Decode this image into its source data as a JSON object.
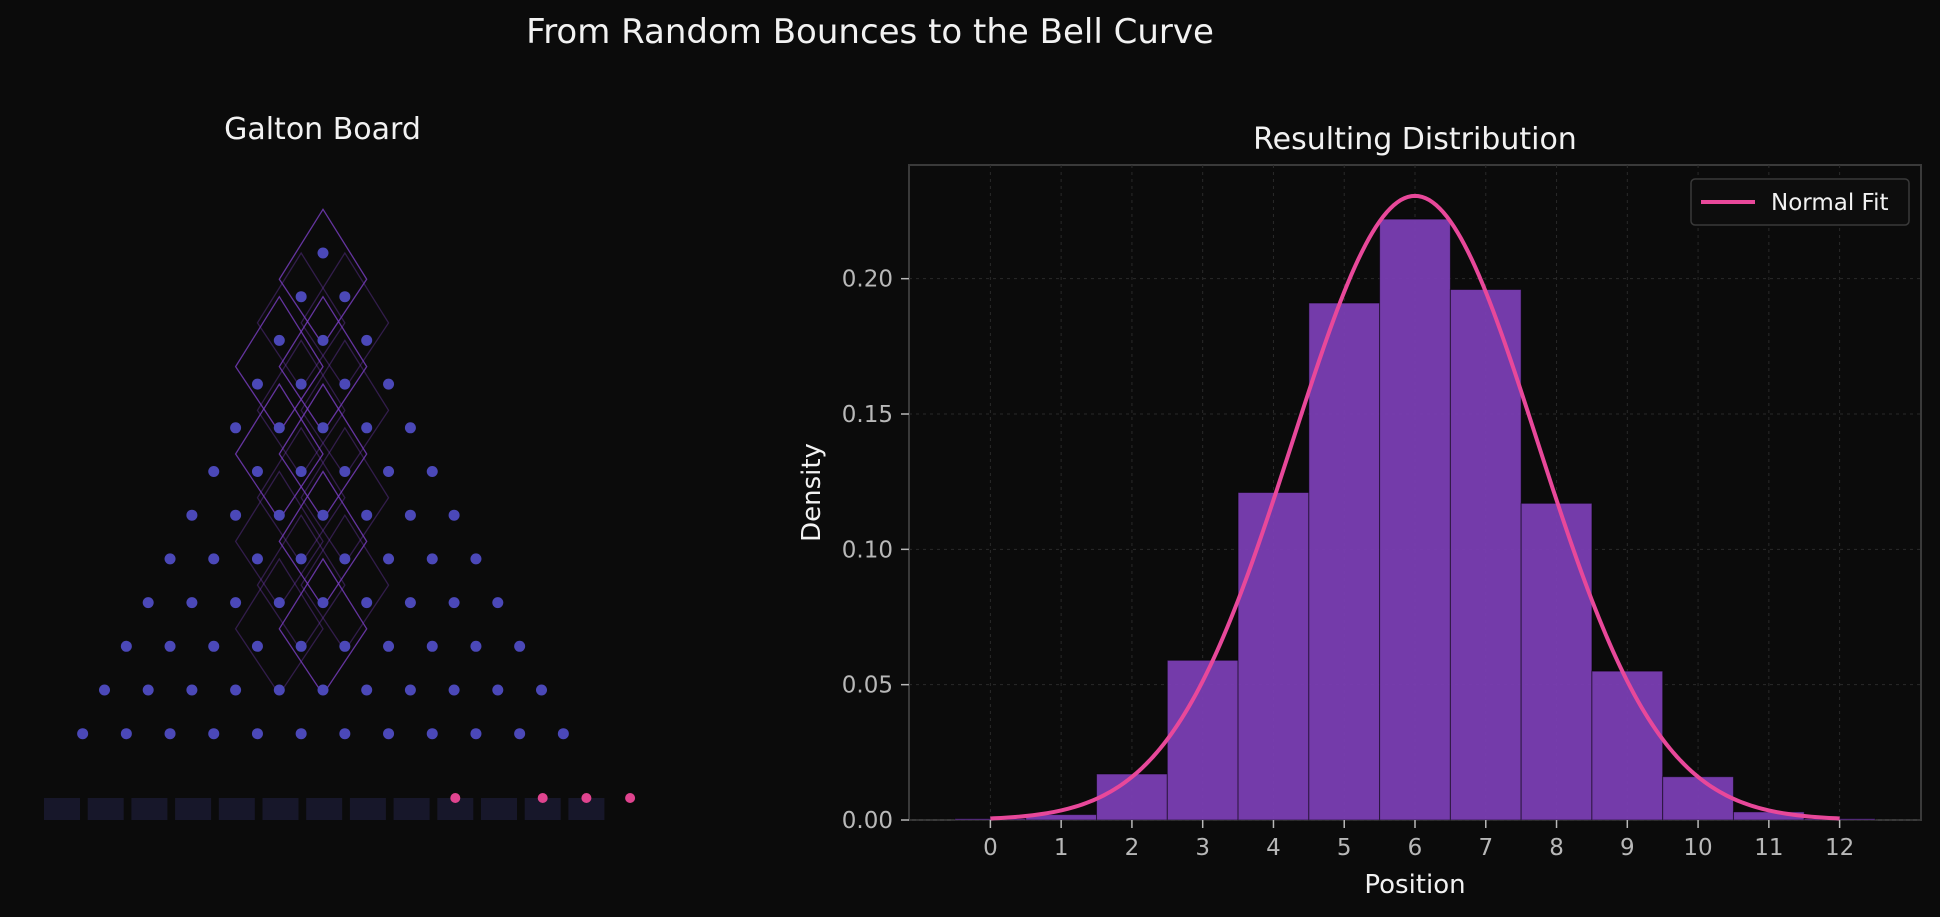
{
  "figure": {
    "title": "From Random Bounces to the Bell Curve",
    "background": "#0b0b0b"
  },
  "galton_board": {
    "title": "Galton Board",
    "rows": 12,
    "bins": 13,
    "peg_color": "#4b48b8",
    "path_color": "#7b3fc4",
    "bin_color": "#17172a",
    "ball_color": "#e0448f"
  },
  "chart_data": {
    "type": "bar",
    "title": "Resulting Distribution",
    "xlabel": "Position",
    "ylabel": "Density",
    "categories": [
      "0",
      "1",
      "2",
      "3",
      "4",
      "5",
      "6",
      "7",
      "8",
      "9",
      "10",
      "11",
      "12"
    ],
    "values": [
      0.0005,
      0.002,
      0.017,
      0.059,
      0.121,
      0.191,
      0.222,
      0.196,
      0.117,
      0.055,
      0.016,
      0.003,
      0.0005
    ],
    "xlim": [
      -1.15,
      13.15
    ],
    "ylim": [
      0,
      0.242
    ],
    "yticks": [
      "0.00",
      "0.05",
      "0.10",
      "0.15",
      "0.20"
    ],
    "grid": true,
    "bar_color": "#7a3eb3",
    "fit": {
      "name": "Normal Fit",
      "mean": 6.0,
      "std": 1.73,
      "x_range": [
        0,
        12
      ],
      "color": "#e8489a"
    },
    "legend": {
      "position": "top-right",
      "entries": [
        "Normal Fit"
      ]
    }
  }
}
